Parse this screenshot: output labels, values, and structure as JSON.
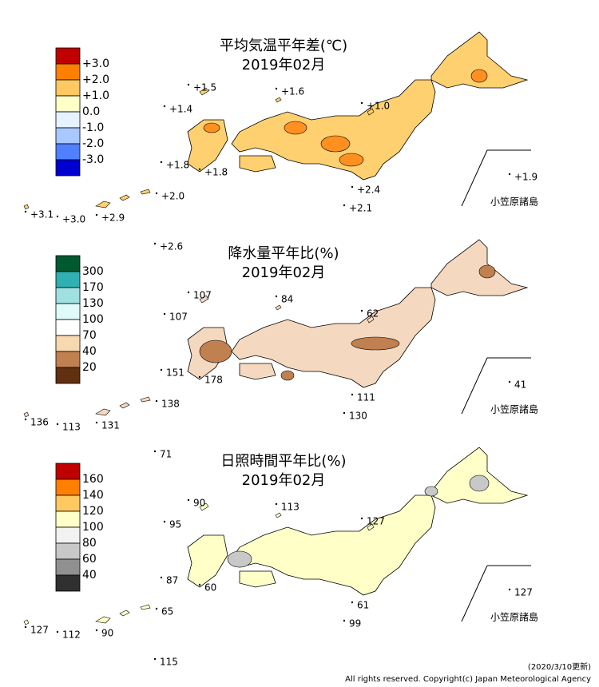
{
  "panels": [
    {
      "title": "平均気温平年差(℃)",
      "subtitle": "2019年02月",
      "legend": {
        "labels": [
          "+3.0",
          "+2.0",
          "+1.0",
          "0.0",
          "-1.0",
          "-2.0",
          "-3.0"
        ],
        "colors": [
          "#c00000",
          "#ff8000",
          "#ffc860",
          "#ffffc8",
          "#e6f2ff",
          "#a8c8ff",
          "#5080ff",
          "#0000d0"
        ]
      },
      "land_color": "#ffd070",
      "accent_color": "#ff9020",
      "stations": [
        "+1.5",
        "+1.6",
        "+1.4",
        "+1.0",
        "+1.8",
        "+1.8",
        "+2.4",
        "+2.1",
        "+1.9",
        "+3.1",
        "+3.0",
        "+2.9",
        "+2.0",
        "+2.6"
      ],
      "region": "小笠原諸島"
    },
    {
      "title": "降水量平年比(%)",
      "subtitle": "2019年02月",
      "legend": {
        "labels": [
          "300",
          "170",
          "130",
          "100",
          "70",
          "40",
          "20"
        ],
        "colors": [
          "#005a30",
          "#30b0b0",
          "#a0e0e0",
          "#e0fafa",
          "#ffffff",
          "#f8d8b0",
          "#c08050",
          "#603010"
        ]
      },
      "land_color": "#f4d8c0",
      "accent_color": "#c08050",
      "stations": [
        "107",
        "84",
        "107",
        "62",
        "151",
        "178",
        "111",
        "130",
        "41",
        "136",
        "113",
        "131",
        "138",
        "71"
      ],
      "region": "小笠原諸島"
    },
    {
      "title": "日照時間平年比(%)",
      "subtitle": "2019年02月",
      "legend": {
        "labels": [
          "160",
          "140",
          "120",
          "100",
          "80",
          "60",
          "40"
        ],
        "colors": [
          "#c00000",
          "#ff8000",
          "#ffc860",
          "#ffffc8",
          "#f2f2f2",
          "#c8c8c8",
          "#909090",
          "#303030"
        ]
      },
      "land_color": "#ffffc8",
      "accent_color": "#c8c8c8",
      "stations": [
        "90",
        "113",
        "95",
        "127",
        "87",
        "60",
        "61",
        "99",
        "127",
        "127",
        "112",
        "90",
        "65",
        "115"
      ],
      "region": "小笠原諸島"
    }
  ],
  "footer": {
    "date": "(2020/3/10更新)",
    "copyright": "All rights reserved. Copyright(c) Japan Meteorological Agency"
  }
}
